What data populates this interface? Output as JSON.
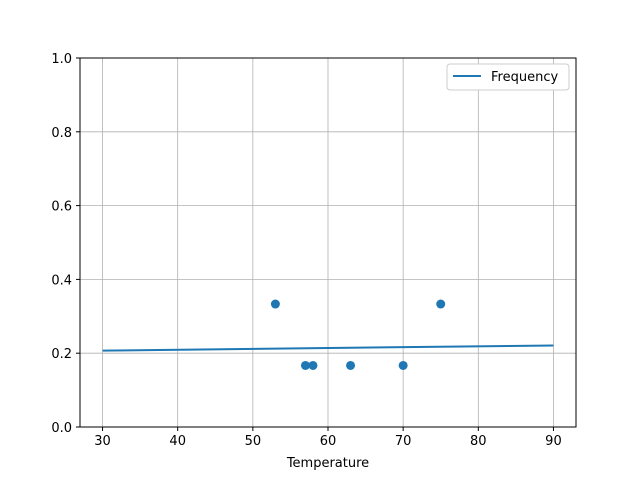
{
  "chart_data": {
    "type": "scatter+line",
    "title": "",
    "xlabel": "Temperature",
    "ylabel": "",
    "xlim": [
      27,
      93
    ],
    "ylim": [
      0,
      1.0
    ],
    "grid": true,
    "x_ticks": [
      30,
      40,
      50,
      60,
      70,
      80,
      90
    ],
    "y_ticks": [
      0.0,
      0.2,
      0.4,
      0.6,
      0.8,
      1.0
    ],
    "x_tick_labels": [
      "30",
      "40",
      "50",
      "60",
      "70",
      "80",
      "90"
    ],
    "y_tick_labels": [
      "0.0",
      "0.2",
      "0.4",
      "0.6",
      "0.8",
      "1.0"
    ],
    "legend": {
      "placement": "top-right",
      "entries": [
        "Frequency"
      ]
    },
    "series": [
      {
        "name": "Frequency",
        "kind": "line",
        "color": "#1f77b4",
        "x": [
          30,
          90
        ],
        "y": [
          0.207,
          0.221
        ]
      },
      {
        "kind": "scatter",
        "color": "#1f77b4",
        "x": [
          53,
          57,
          58,
          63,
          70,
          75
        ],
        "y": [
          0.3333,
          0.1667,
          0.1667,
          0.1667,
          0.1667,
          0.3333
        ]
      }
    ]
  }
}
